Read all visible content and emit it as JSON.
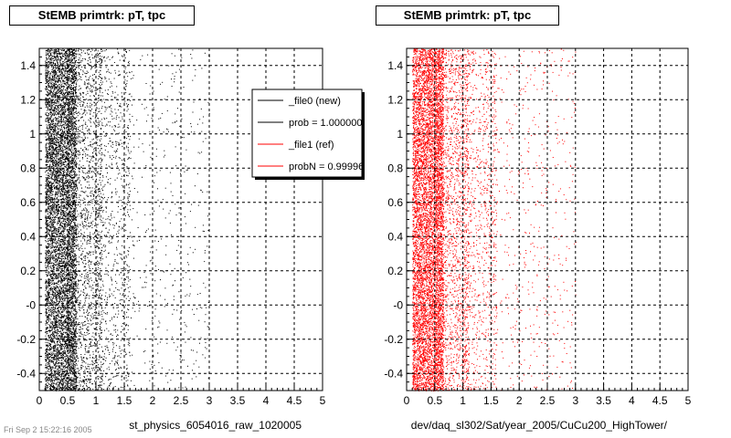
{
  "colors": {
    "ref": "#000000",
    "new": "#ff0000",
    "grid": "#000000",
    "frame": "#000000"
  },
  "pads": [
    {
      "title": "StEMB primtrk: pT, tpc",
      "xlabel": "st_physics_6054016_raw_1020005",
      "legend": [
        {
          "label": "_file0 (new)",
          "color": "#000000"
        },
        {
          "label": "prob = 1.000000",
          "color": "#000000"
        },
        {
          "label": "_file1 (ref)",
          "color": "#ff0000"
        },
        {
          "label": "probN = 0.99996",
          "color": "#ff0000"
        }
      ]
    },
    {
      "title": "StEMB primtrk: pT, tpc",
      "xlabel": "dev/daq_sl302/Sat/year_2005/CuCu200_HighTower/"
    }
  ],
  "stamp": "Fri Sep  2 15:22:16 2005",
  "chart_data": [
    {
      "type": "scatter",
      "title": "StEMB primtrk: pT, tpc",
      "xlabel": "st_physics_6054016_raw_1020005",
      "ylabel": "",
      "xlim": [
        0,
        5
      ],
      "ylim": [
        -0.5,
        1.5
      ],
      "xticks": [
        "0",
        "0.5",
        "1",
        "1.5",
        "2",
        "2.5",
        "3",
        "3.5",
        "4",
        "4.5",
        "5"
      ],
      "yticks": [
        "-0.4",
        "-0.2",
        "-0",
        "0.2",
        "0.4",
        "0.6",
        "0.8",
        "1",
        "1.2",
        "1.4"
      ],
      "grid": true,
      "series": [
        {
          "name": "_file0 (new)",
          "color": "#000000",
          "density_peak_x": 0.25,
          "x_range": [
            0.1,
            3.0
          ]
        }
      ]
    },
    {
      "type": "scatter",
      "title": "StEMB primtrk: pT, tpc",
      "xlabel": "dev/daq_sl302/Sat/year_2005/CuCu200_HighTower/",
      "ylabel": "",
      "xlim": [
        0,
        5
      ],
      "ylim": [
        -0.5,
        1.5
      ],
      "xticks": [
        "0",
        "0.5",
        "1",
        "1.5",
        "2",
        "2.5",
        "3",
        "3.5",
        "4",
        "4.5",
        "5"
      ],
      "yticks": [
        "-0.4",
        "-0.2",
        "-0",
        "0.2",
        "0.4",
        "0.6",
        "0.8",
        "1",
        "1.2",
        "1.4"
      ],
      "grid": true,
      "series": [
        {
          "name": "_file1 (ref)",
          "color": "#ff0000",
          "density_peak_x": 0.25,
          "x_range": [
            0.1,
            3.0
          ]
        }
      ]
    }
  ]
}
